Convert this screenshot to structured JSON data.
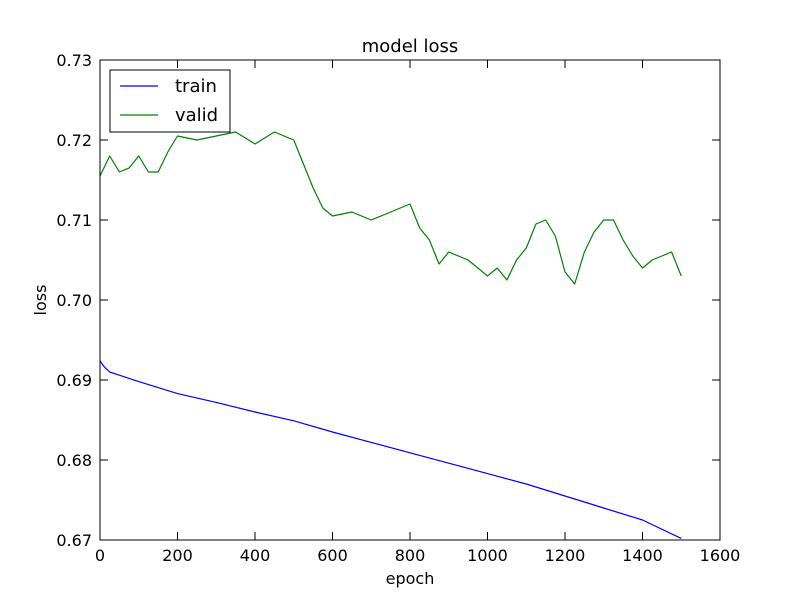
{
  "chart_data": {
    "type": "line",
    "title": "model loss",
    "xlabel": "epoch",
    "ylabel": "loss",
    "xlim": [
      0,
      1600
    ],
    "ylim": [
      0.67,
      0.73
    ],
    "xticks": [
      0,
      200,
      400,
      600,
      800,
      1000,
      1200,
      1400,
      1600
    ],
    "xtick_labels": [
      "0",
      "200",
      "400",
      "600",
      "800",
      "1000",
      "1200",
      "1400",
      "1600"
    ],
    "yticks": [
      0.67,
      0.68,
      0.69,
      0.7,
      0.71,
      0.72,
      0.73
    ],
    "ytick_labels": [
      "0.67",
      "0.68",
      "0.69",
      "0.70",
      "0.71",
      "0.72",
      "0.73"
    ],
    "grid": false,
    "legend": "top-left",
    "series": [
      {
        "name": "train",
        "color": "#0000ff",
        "x": [
          0,
          10,
          25,
          50,
          100,
          200,
          300,
          400,
          500,
          600,
          700,
          800,
          900,
          1000,
          1100,
          1200,
          1300,
          1400,
          1500
        ],
        "y": [
          0.6924,
          0.6917,
          0.691,
          0.6906,
          0.6898,
          0.6883,
          0.6872,
          0.686,
          0.6849,
          0.6835,
          0.6822,
          0.6809,
          0.6796,
          0.6783,
          0.677,
          0.6755,
          0.674,
          0.6725,
          0.6702
        ]
      },
      {
        "name": "valid",
        "color": "#008000",
        "x": [
          0,
          25,
          50,
          75,
          100,
          125,
          150,
          175,
          200,
          250,
          300,
          350,
          400,
          450,
          500,
          525,
          550,
          575,
          600,
          650,
          700,
          750,
          800,
          825,
          850,
          875,
          900,
          950,
          1000,
          1025,
          1050,
          1075,
          1100,
          1125,
          1150,
          1175,
          1200,
          1225,
          1250,
          1275,
          1300,
          1325,
          1350,
          1375,
          1400,
          1425,
          1450,
          1475,
          1500
        ],
        "y": [
          0.7155,
          0.718,
          0.716,
          0.7165,
          0.718,
          0.716,
          0.716,
          0.7185,
          0.7205,
          0.72,
          0.7205,
          0.721,
          0.7195,
          0.721,
          0.72,
          0.717,
          0.714,
          0.7115,
          0.7105,
          0.711,
          0.71,
          0.711,
          0.712,
          0.709,
          0.7075,
          0.7045,
          0.706,
          0.705,
          0.703,
          0.704,
          0.7025,
          0.705,
          0.7065,
          0.7095,
          0.71,
          0.708,
          0.7035,
          0.702,
          0.706,
          0.7085,
          0.71,
          0.71,
          0.7075,
          0.7055,
          0.704,
          0.705,
          0.7055,
          0.706,
          0.703
        ]
      }
    ]
  }
}
